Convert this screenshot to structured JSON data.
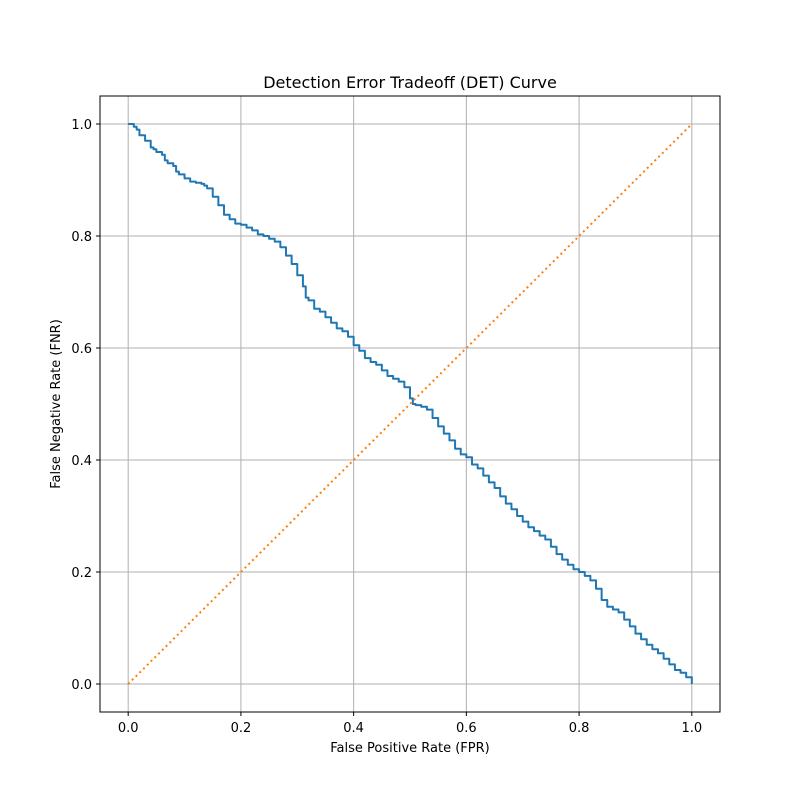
{
  "chart_data": {
    "type": "line",
    "title": "Detection Error Tradeoff (DET) Curve",
    "xlabel": "False Positive Rate (FPR)",
    "ylabel": "False Negative Rate (FNR)",
    "xlim": [
      -0.05,
      1.05
    ],
    "ylim": [
      -0.05,
      1.05
    ],
    "xticks": [
      "0.0",
      "0.2",
      "0.4",
      "0.6",
      "0.8",
      "1.0"
    ],
    "yticks": [
      "0.0",
      "0.2",
      "0.4",
      "0.6",
      "0.8",
      "1.0"
    ],
    "grid": true,
    "colors": {
      "curve": "#1f77b4",
      "diagonal": "#ff7f0e",
      "grid": "#b0b0b0"
    },
    "series": [
      {
        "style": "solid",
        "x": [
          0.0,
          0.01,
          0.015,
          0.02,
          0.03,
          0.04,
          0.045,
          0.05,
          0.06,
          0.065,
          0.07,
          0.08,
          0.085,
          0.09,
          0.1,
          0.11,
          0.12,
          0.13,
          0.135,
          0.14,
          0.15,
          0.16,
          0.17,
          0.18,
          0.19,
          0.2,
          0.21,
          0.22,
          0.23,
          0.24,
          0.25,
          0.26,
          0.27,
          0.28,
          0.29,
          0.3,
          0.31,
          0.315,
          0.32,
          0.33,
          0.34,
          0.35,
          0.36,
          0.37,
          0.38,
          0.39,
          0.4,
          0.41,
          0.42,
          0.43,
          0.44,
          0.45,
          0.46,
          0.47,
          0.48,
          0.49,
          0.5,
          0.505,
          0.51,
          0.52,
          0.53,
          0.54,
          0.55,
          0.56,
          0.57,
          0.58,
          0.59,
          0.6,
          0.61,
          0.62,
          0.63,
          0.64,
          0.65,
          0.66,
          0.67,
          0.68,
          0.69,
          0.7,
          0.71,
          0.72,
          0.73,
          0.74,
          0.75,
          0.76,
          0.77,
          0.78,
          0.79,
          0.8,
          0.81,
          0.82,
          0.83,
          0.84,
          0.85,
          0.86,
          0.87,
          0.88,
          0.89,
          0.9,
          0.91,
          0.92,
          0.93,
          0.94,
          0.95,
          0.96,
          0.97,
          0.98,
          0.99,
          1.0
        ],
        "y": [
          1.0,
          0.995,
          0.99,
          0.98,
          0.97,
          0.958,
          0.955,
          0.95,
          0.945,
          0.935,
          0.93,
          0.925,
          0.915,
          0.91,
          0.903,
          0.897,
          0.895,
          0.893,
          0.89,
          0.885,
          0.87,
          0.855,
          0.838,
          0.83,
          0.822,
          0.82,
          0.815,
          0.81,
          0.803,
          0.8,
          0.795,
          0.79,
          0.78,
          0.765,
          0.75,
          0.73,
          0.71,
          0.69,
          0.685,
          0.67,
          0.665,
          0.655,
          0.645,
          0.635,
          0.63,
          0.62,
          0.605,
          0.595,
          0.582,
          0.575,
          0.57,
          0.56,
          0.55,
          0.545,
          0.54,
          0.53,
          0.51,
          0.5,
          0.498,
          0.495,
          0.49,
          0.475,
          0.46,
          0.447,
          0.435,
          0.42,
          0.41,
          0.405,
          0.392,
          0.385,
          0.372,
          0.36,
          0.35,
          0.335,
          0.322,
          0.312,
          0.3,
          0.29,
          0.28,
          0.273,
          0.265,
          0.258,
          0.245,
          0.232,
          0.222,
          0.213,
          0.205,
          0.2,
          0.193,
          0.185,
          0.17,
          0.15,
          0.138,
          0.133,
          0.128,
          0.115,
          0.103,
          0.09,
          0.08,
          0.07,
          0.062,
          0.055,
          0.045,
          0.035,
          0.025,
          0.02,
          0.012,
          0.0
        ]
      },
      {
        "style": "dotted",
        "x": [
          0.0,
          1.0
        ],
        "y": [
          0.0,
          1.0
        ]
      }
    ]
  }
}
